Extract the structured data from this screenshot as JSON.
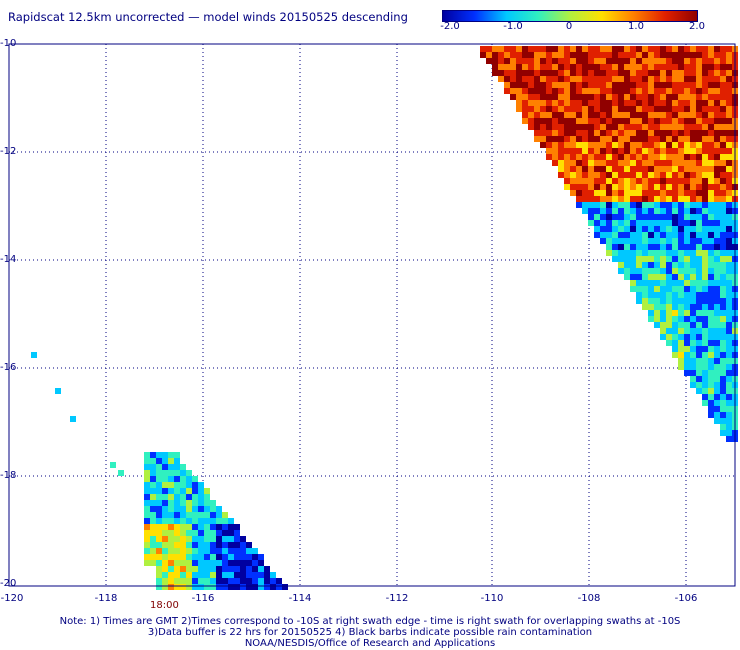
{
  "title": "Rapidscat 12.5km uncorrected — model winds 20150525 descending",
  "colorbar": {
    "ticks": [
      "-2.0",
      "-1.0",
      "0",
      "1.0",
      "2.0"
    ],
    "colors": [
      "#0000a0",
      "#0030ff",
      "#00c8ff",
      "#30f0c0",
      "#b0f040",
      "#ffe000",
      "#ff8000",
      "#e02000",
      "#900000"
    ]
  },
  "axes": {
    "lon_labels": [
      "-120",
      "-118",
      "-116",
      "-114",
      "-112",
      "-110",
      "-108",
      "-106"
    ],
    "lat_labels": [
      "-10",
      "-12",
      "-14",
      "-16",
      "-18",
      "-20"
    ]
  },
  "time_label": "18:00",
  "notes": [
    "Note: 1) Times are GMT 2)Times correspond to -10S at right swath edge - time is right swath for overlapping swaths at -10S",
    "3)Data buffer is 22 hrs for 20150525 4) Black barbs indicate possible rain contamination",
    "NOAA/NESDIS/Office of Research and Applications"
  ]
}
